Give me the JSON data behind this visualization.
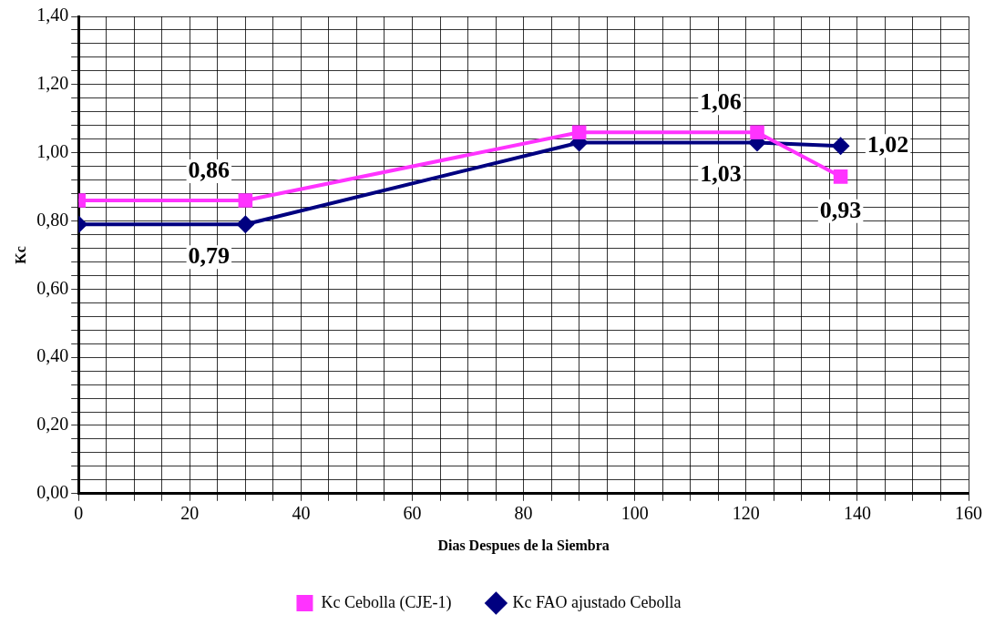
{
  "chart_data": {
    "type": "line",
    "xlabel": "Dias Despues de la Siembra",
    "ylabel": "Kc",
    "series": [
      {
        "name": "Kc Cebolla (CJE-1)",
        "color": "#ff33ff",
        "marker": "square",
        "x": [
          0,
          30,
          90,
          122,
          137
        ],
        "values": [
          0.86,
          0.86,
          1.06,
          1.06,
          0.93
        ],
        "value_labels": [
          null,
          "0,86",
          null,
          "1,06",
          "0,93"
        ]
      },
      {
        "name": "Kc FAO ajustado Cebolla",
        "color": "#000080",
        "marker": "diamond",
        "x": [
          0,
          30,
          90,
          122,
          137
        ],
        "values": [
          0.79,
          0.79,
          1.03,
          1.03,
          1.02
        ],
        "value_labels": [
          null,
          "0,79",
          null,
          "1,03",
          "1,02"
        ]
      }
    ],
    "xlim": [
      0,
      160
    ],
    "xticks": [
      0,
      {
        "value": 5,
        "label": null
      },
      {
        "value": 10,
        "label": null
      },
      {
        "value": 15,
        "label": null
      },
      20,
      {
        "value": 25,
        "label": null
      },
      {
        "value": 30,
        "label": null
      },
      {
        "value": 35,
        "label": null
      },
      40,
      {
        "value": 45,
        "label": null
      },
      {
        "value": 50,
        "label": null
      },
      {
        "value": 55,
        "label": null
      },
      60,
      {
        "value": 65,
        "label": null
      },
      {
        "value": 70,
        "label": null
      },
      {
        "value": 75,
        "label": null
      },
      80,
      {
        "value": 85,
        "label": null
      },
      {
        "value": 90,
        "label": null
      },
      {
        "value": 95,
        "label": null
      },
      100,
      {
        "value": 105,
        "label": null
      },
      {
        "value": 110,
        "label": null
      },
      {
        "value": 115,
        "label": null
      },
      120,
      {
        "value": 125,
        "label": null
      },
      {
        "value": 130,
        "label": null
      },
      {
        "value": 135,
        "label": null
      },
      140,
      {
        "value": 145,
        "label": null
      },
      {
        "value": 150,
        "label": null
      },
      {
        "value": 155,
        "label": null
      },
      160
    ],
    "ylim": [
      0,
      1.4
    ],
    "yticks": [
      {
        "value": 0,
        "label": "0,00"
      },
      {
        "value": 0.04,
        "label": null
      },
      {
        "value": 0.08,
        "label": null
      },
      {
        "value": 0.12,
        "label": null
      },
      {
        "value": 0.16,
        "label": null
      },
      {
        "value": 0.2,
        "label": "0,20"
      },
      {
        "value": 0.24,
        "label": null
      },
      {
        "value": 0.28,
        "label": null
      },
      {
        "value": 0.32,
        "label": null
      },
      {
        "value": 0.36,
        "label": null
      },
      {
        "value": 0.4,
        "label": "0,40"
      },
      {
        "value": 0.44,
        "label": null
      },
      {
        "value": 0.48,
        "label": null
      },
      {
        "value": 0.52,
        "label": null
      },
      {
        "value": 0.56,
        "label": null
      },
      {
        "value": 0.6,
        "label": "0,60"
      },
      {
        "value": 0.64,
        "label": null
      },
      {
        "value": 0.68,
        "label": null
      },
      {
        "value": 0.72,
        "label": null
      },
      {
        "value": 0.76,
        "label": null
      },
      {
        "value": 0.8,
        "label": "0,80"
      },
      {
        "value": 0.84,
        "label": null
      },
      {
        "value": 0.88,
        "label": null
      },
      {
        "value": 0.92,
        "label": null
      },
      {
        "value": 0.96,
        "label": null
      },
      {
        "value": 1,
        "label": "1,00"
      },
      {
        "value": 1.04,
        "label": null
      },
      {
        "value": 1.08,
        "label": null
      },
      {
        "value": 1.12,
        "label": null
      },
      {
        "value": 1.16,
        "label": null
      },
      {
        "value": 1.2,
        "label": "1,20"
      },
      {
        "value": 1.24,
        "label": null
      },
      {
        "value": 1.28,
        "label": null
      },
      {
        "value": 1.32,
        "label": null
      },
      {
        "value": 1.36,
        "label": null
      },
      {
        "value": 1.4,
        "label": "1,40"
      }
    ],
    "grid": true,
    "legend": "bottom",
    "line_style": "solid"
  }
}
